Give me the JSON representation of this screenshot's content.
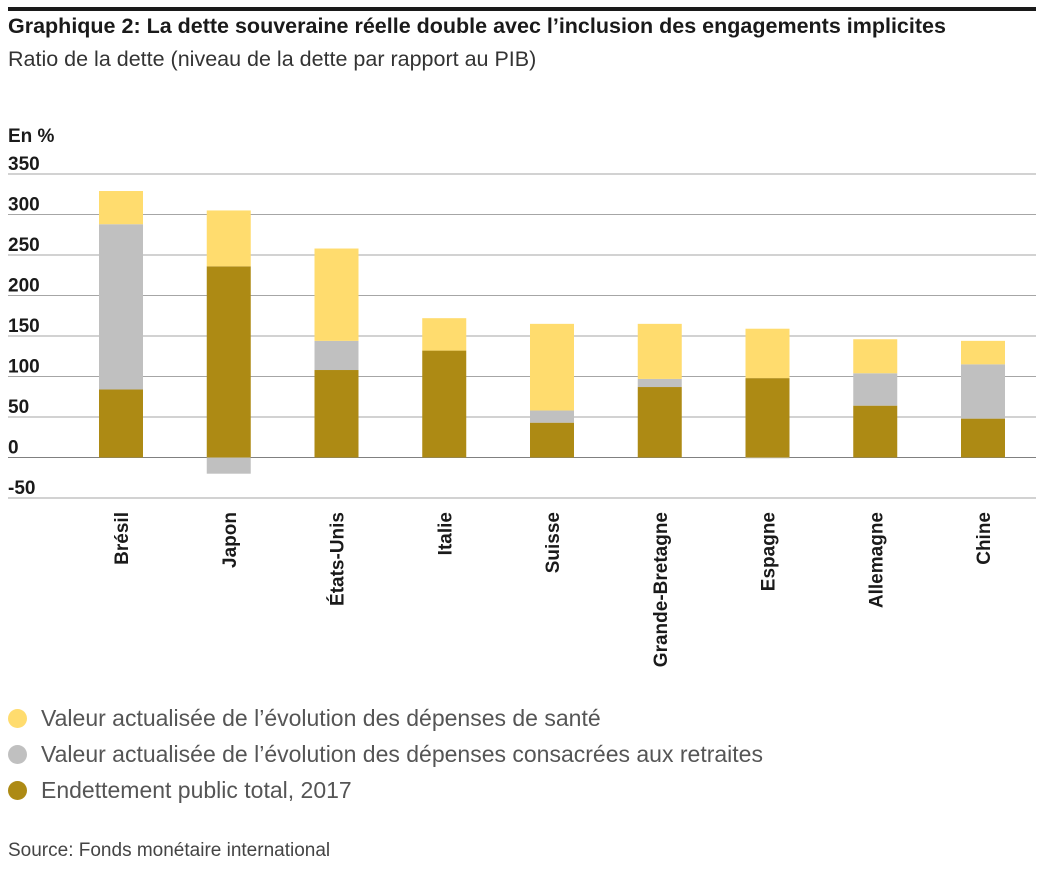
{
  "title": "Graphique 2: La dette souveraine réelle double avec l’inclusion des engagements implicites",
  "subtitle": "Ratio de la dette (niveau de la dette par rapport au PIB)",
  "source": "Source: Fonds monétaire international",
  "chart_data": {
    "type": "bar",
    "stacked": true,
    "unit_label": "En %",
    "ylim": [
      -50,
      350
    ],
    "yticks": [
      350,
      300,
      250,
      200,
      150,
      100,
      50,
      0,
      -50
    ],
    "grid": true,
    "legend_position": "bottom",
    "categories": [
      "Brésil",
      "Japon",
      "États-Unis",
      "Italie",
      "Suisse",
      "Grande-Bretagne",
      "Espagne",
      "Allemagne",
      "Chine"
    ],
    "series": [
      {
        "name": "Endettement public total, 2017",
        "color": "#ad8a14",
        "values": [
          84,
          236,
          108,
          132,
          43,
          87,
          98,
          64,
          48
        ]
      },
      {
        "name": "Valeur actualisée de l’évolution des dépenses consacrées aux retraites",
        "color": "#c0c0c0",
        "values": [
          204,
          -20,
          36,
          0,
          15,
          10,
          -1,
          40,
          67
        ]
      },
      {
        "name": "Valeur actualisée de l’évolution des dépenses de santé",
        "color": "#ffdc6e",
        "values": [
          41,
          69,
          114,
          40,
          107,
          68,
          61,
          42,
          29
        ]
      }
    ],
    "legend_order": [
      2,
      1,
      0
    ]
  }
}
